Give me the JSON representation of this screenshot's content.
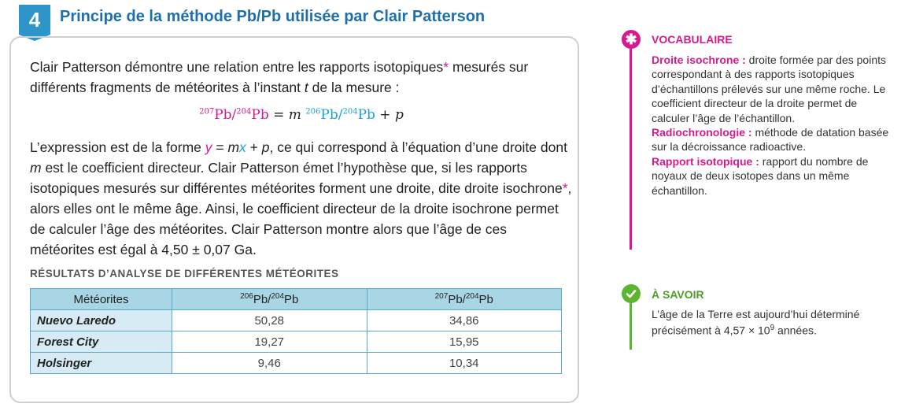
{
  "doc": {
    "number": "4",
    "title": "Principe de la méthode Pb/Pb utilisée par Clair Patterson",
    "para1": {
      "before": "Clair Patterson démontre une relation entre les rapports isotopiques",
      "star": "*",
      "mid": " mesurés sur différents fragments de météorites à l’instant ",
      "t": "t",
      "after": " de la mesure :"
    },
    "formula": {
      "sup207": "207",
      "pb1": "Pb/",
      "sup204a": "204",
      "pb2": "Pb",
      "eq": " = ",
      "m": "m",
      "sup206": "206",
      "pb3": "Pb/",
      "sup204b": "204",
      "pb4": "Pb",
      "plus": " + ",
      "p": "p"
    },
    "para2": {
      "s1": "L’expression est de la forme ",
      "y": "y",
      "eq": " = ",
      "m": "m",
      "x": "x",
      "plus": " + ",
      "p": "p",
      "s2": ", ce qui correspond à l’équation d’une droite dont ",
      "m2": "m",
      "s3": " est le coefficient directeur. Clair Patterson émet l’hypothèse que, si les rapports isotopiques mesurés sur différentes météorites forment une droite, dite droite isochrone",
      "star": "*",
      "s4": ", alors elles ont le même âge. Ainsi, le coefficient directeur de la droite isochrone permet de calculer l’âge des météorites. Clair Patterson montre alors que l’âge de ces météorites est égal à 4,50 ± 0,07 Ga."
    },
    "section_heading": "RÉSULTATS D’ANALYSE DE DIFFÉRENTES MÉTÉORITES",
    "table": {
      "col1": "Météorites",
      "col2": {
        "sup_a": "206",
        "mid": "Pb/",
        "sup_b": "204",
        "end": "Pb"
      },
      "col3": {
        "sup_a": "207",
        "mid": "Pb/",
        "sup_b": "204",
        "end": "Pb"
      },
      "rows": [
        {
          "name": "Nuevo Laredo",
          "v1": "50,28",
          "v2": "34,86"
        },
        {
          "name": "Forest City",
          "v1": "19,27",
          "v2": "15,95"
        },
        {
          "name": "Holsinger",
          "v1": "9,46",
          "v2": "10,34"
        }
      ]
    }
  },
  "vocabulary": {
    "icon": "asterisk-icon",
    "heading": "VOCABULAIRE",
    "entries": [
      {
        "term": "Droite isochrone :",
        "def": " droite formée par des points correspondant à des rapports isotopiques d’échantillons prélevés sur une même roche. Le coefficient directeur de la droite permet de calculer l’âge de l’échantillon."
      },
      {
        "term": "Radiochronologie :",
        "def": " méthode de datation basée sur la décroissance radioactive."
      },
      {
        "term": "Rapport isotopique :",
        "def": " rapport du nombre de noyaux de deux isotopes dans un même échantillon."
      }
    ]
  },
  "savoir": {
    "icon": "checkmark-icon",
    "heading": "À SAVOIR",
    "text": "L’âge de la Terre est aujourd’hui déterminé précisément à 4,57 × 10",
    "exp": "9",
    "end": " années."
  },
  "colors": {
    "accent_blue": "#2e95c9",
    "magenta": "#d41a8f",
    "cyan": "#1aa3d6",
    "green": "#5cb531"
  }
}
